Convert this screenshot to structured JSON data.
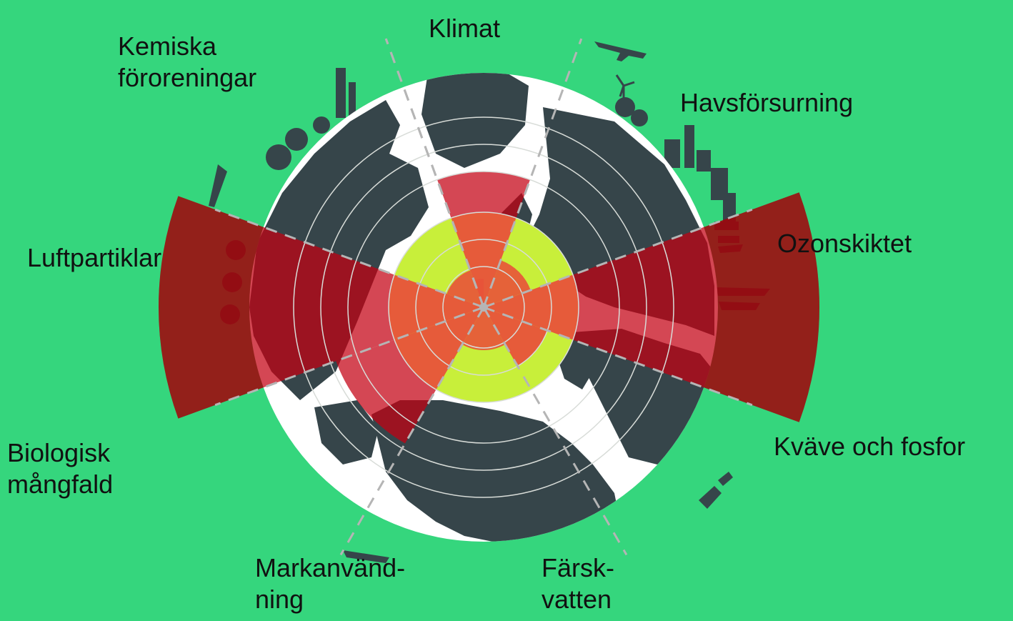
{
  "colors": {
    "background": "#35d67d",
    "globe_land": "#36454a",
    "globe_sea": "#ffffff",
    "safe_zone": "#c8ef3a",
    "wedge_uncertain": "#e8523a",
    "wedge_high_risk": "#c40012",
    "wedge_outside_globe": "#8c0a0a",
    "ring_lines": "#d8dcd8",
    "divider_dashes": "#b5b5b5",
    "silhouettes": "#36454a"
  },
  "boundaries": [
    {
      "id": "klimat",
      "lines": [
        "Klimat"
      ],
      "status": "high-risk"
    },
    {
      "id": "havsforsurning",
      "lines": [
        "Havsförsurning"
      ],
      "status": "safe"
    },
    {
      "id": "ozonskiktet",
      "lines": [
        "Ozonskiktet"
      ],
      "status": "safe"
    },
    {
      "id": "kvave-och-fosfor",
      "lines": [
        "Kväve och fosfor"
      ],
      "status": "high-risk"
    },
    {
      "id": "farskvatten",
      "lines": [
        "Färsk-",
        "vatten"
      ],
      "status": "uncertain"
    },
    {
      "id": "markanvandning",
      "lines": [
        "Markanvänd-",
        "ning"
      ],
      "status": "high-risk"
    },
    {
      "id": "biologisk-mangfald",
      "lines": [
        "Biologisk",
        "mångfald"
      ],
      "status": "high-risk"
    },
    {
      "id": "luftpartiklar",
      "lines": [
        "Luftpartiklar"
      ],
      "status": "not-quantified"
    },
    {
      "id": "kemiska-fororeningar",
      "lines": [
        "Kemiska",
        "föroreningar"
      ],
      "status": "not-quantified"
    }
  ],
  "icons": [
    "globe-icon",
    "airplane-icon",
    "wind-turbine-icon",
    "factory-icon",
    "tree-icon",
    "satellite-icon",
    "ship-icon"
  ]
}
